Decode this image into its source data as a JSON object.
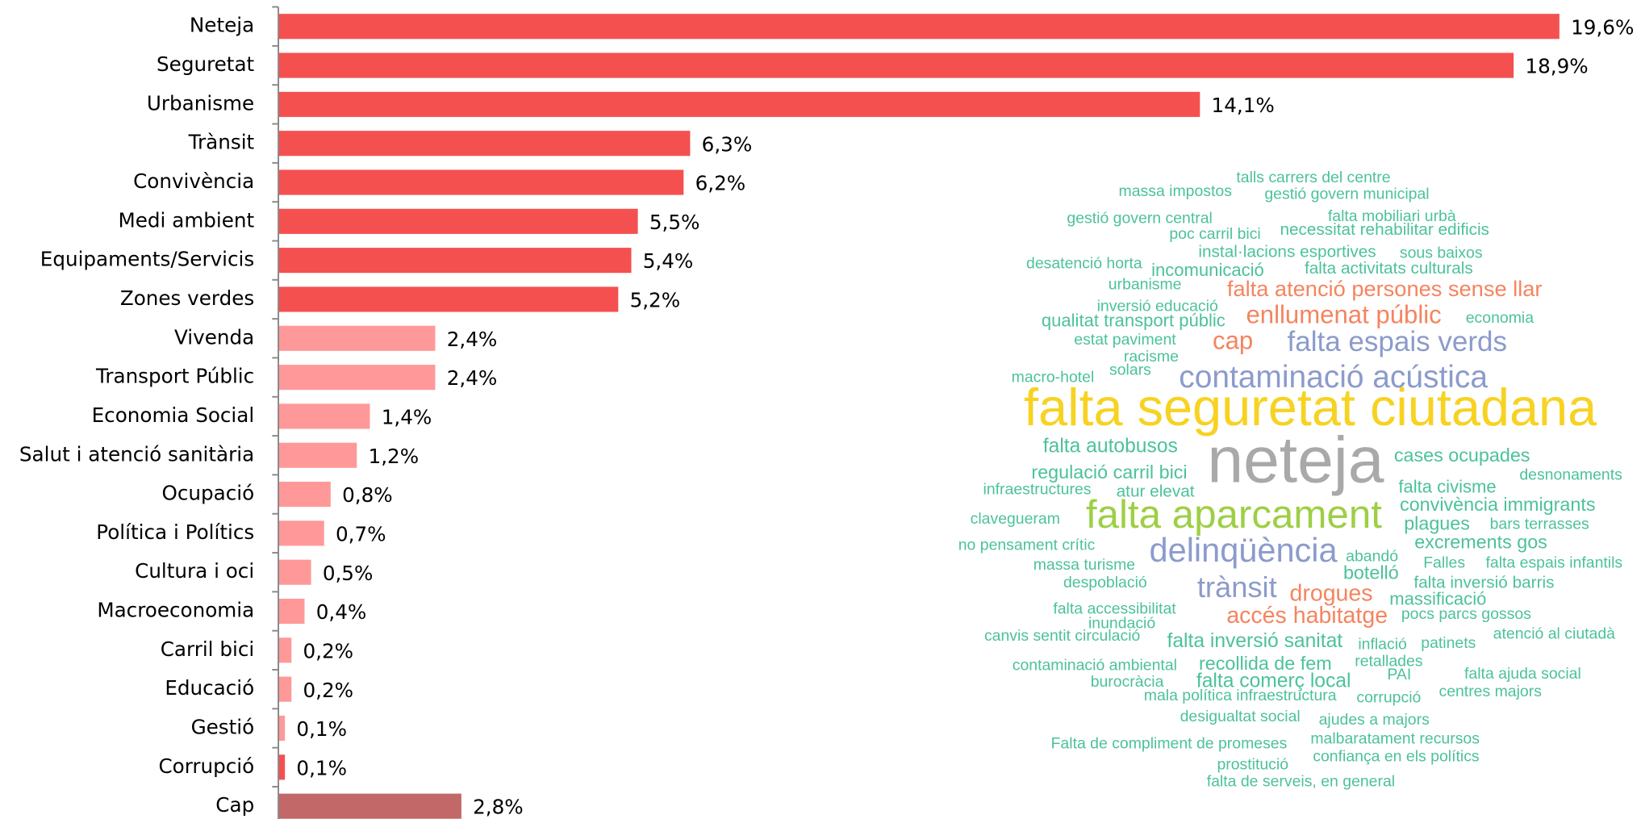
{
  "chart_data": {
    "type": "bar",
    "orientation": "horizontal",
    "categories": [
      "Neteja",
      "Seguretat",
      "Urbanisme",
      "Trànsit",
      "Convivència",
      "Medi ambient",
      "Equipaments/Servicis",
      "Zones verdes",
      "Vivenda",
      "Transport Públic",
      "Economia Social",
      "Salut i atenció sanitària",
      "Ocupació",
      "Política i Polítics",
      "Cultura i oci",
      "Macroeconomia",
      "Carril bici",
      "Educació",
      "Gestió",
      "Corrupció",
      "Cap"
    ],
    "values": [
      19.6,
      18.9,
      14.1,
      6.3,
      6.2,
      5.5,
      5.4,
      5.2,
      2.4,
      2.4,
      1.4,
      1.2,
      0.8,
      0.7,
      0.5,
      0.4,
      0.2,
      0.2,
      0.1,
      0.1,
      2.8
    ],
    "value_labels": [
      "19,6%",
      "18,9%",
      "14,1%",
      "6,3%",
      "6,2%",
      "5,5%",
      "5,4%",
      "5,2%",
      "2,4%",
      "2,4%",
      "1,4%",
      "1,2%",
      "0,8%",
      "0,7%",
      "0,5%",
      "0,4%",
      "0,2%",
      "0,2%",
      "0,1%",
      "0,1%",
      "2,8%"
    ],
    "colors": [
      "#f55050",
      "#f55050",
      "#f55050",
      "#f55050",
      "#f55050",
      "#f55050",
      "#f55050",
      "#f55050",
      "#ff9999",
      "#ff9999",
      "#ff9999",
      "#ff9999",
      "#ff9999",
      "#ff9999",
      "#ff9999",
      "#ff9999",
      "#ff9999",
      "#ff9999",
      "#ff9999",
      "#f55050",
      "#c26868"
    ],
    "xlim": [
      0,
      20
    ]
  },
  "word_cloud": [
    {
      "text": "talls carrers del centre",
      "color": "#4cc29a"
    },
    {
      "text": "massa impostos",
      "color": "#4cc29a"
    },
    {
      "text": "gestió govern municipal",
      "color": "#4cc29a"
    },
    {
      "text": "falta mobiliari urbà",
      "color": "#4cc29a"
    },
    {
      "text": "gestió govern central",
      "color": "#4cc29a"
    },
    {
      "text": "poc carril bici",
      "color": "#4cc29a"
    },
    {
      "text": "necessitat rehabilitar edificis",
      "color": "#4cc29a"
    },
    {
      "text": "instal·lacions esportives",
      "color": "#4cc29a"
    },
    {
      "text": "sous baixos",
      "color": "#4cc29a"
    },
    {
      "text": "desatenció horta",
      "color": "#4cc29a"
    },
    {
      "text": "incomunicació",
      "color": "#4cc29a"
    },
    {
      "text": "falta activitats culturals",
      "color": "#4cc29a"
    },
    {
      "text": "urbanisme",
      "color": "#4cc29a"
    },
    {
      "text": "falta atenció persones sense llar",
      "color": "#f5845f"
    },
    {
      "text": "inversió educació",
      "color": "#4cc29a"
    },
    {
      "text": "enllumenat públic",
      "color": "#f5845f"
    },
    {
      "text": "qualitat transport públic",
      "color": "#4cc29a"
    },
    {
      "text": "economia",
      "color": "#4cc29a"
    },
    {
      "text": "estat paviment",
      "color": "#4cc29a"
    },
    {
      "text": "cap",
      "color": "#f5845f"
    },
    {
      "text": "falta espais verds",
      "color": "#8c9bcc"
    },
    {
      "text": "racisme",
      "color": "#4cc29a"
    },
    {
      "text": "solars",
      "color": "#4cc29a"
    },
    {
      "text": "macro-hotel",
      "color": "#4cc29a"
    },
    {
      "text": "contaminació acústica",
      "color": "#8c9bcc"
    },
    {
      "text": "falta seguretat ciutadana",
      "color": "#f7d221"
    },
    {
      "text": "falta autobusos",
      "color": "#4cc29a"
    },
    {
      "text": "neteja",
      "color": "#a9a9a9"
    },
    {
      "text": "cases ocupades",
      "color": "#4cc29a"
    },
    {
      "text": "regulació carril bici",
      "color": "#4cc29a"
    },
    {
      "text": "desnonaments",
      "color": "#4cc29a"
    },
    {
      "text": "infraestructures",
      "color": "#4cc29a"
    },
    {
      "text": "atur elevat",
      "color": "#4cc29a"
    },
    {
      "text": "falta civisme",
      "color": "#4cc29a"
    },
    {
      "text": "convivència immigrants",
      "color": "#4cc29a"
    },
    {
      "text": "falta aparcament",
      "color": "#9dcf45"
    },
    {
      "text": "clavegueram",
      "color": "#4cc29a"
    },
    {
      "text": "plagues",
      "color": "#4cc29a"
    },
    {
      "text": "bars terrasses",
      "color": "#4cc29a"
    },
    {
      "text": "no pensament crític",
      "color": "#4cc29a"
    },
    {
      "text": "excrements gos",
      "color": "#4cc29a"
    },
    {
      "text": "delinqüència",
      "color": "#8c9bcc"
    },
    {
      "text": "abandó",
      "color": "#4cc29a"
    },
    {
      "text": "Falles",
      "color": "#4cc29a"
    },
    {
      "text": "falta espais infantils",
      "color": "#4cc29a"
    },
    {
      "text": "massa turisme",
      "color": "#4cc29a"
    },
    {
      "text": "botelló",
      "color": "#4cc29a"
    },
    {
      "text": "trànsit",
      "color": "#8c9bcc"
    },
    {
      "text": "drogues",
      "color": "#f5845f"
    },
    {
      "text": "falta inversió barris",
      "color": "#4cc29a"
    },
    {
      "text": "despoblació",
      "color": "#4cc29a"
    },
    {
      "text": "massificació",
      "color": "#4cc29a"
    },
    {
      "text": "falta accessibilitat",
      "color": "#4cc29a"
    },
    {
      "text": "accés habitatge",
      "color": "#f5845f"
    },
    {
      "text": "pocs parcs gossos",
      "color": "#4cc29a"
    },
    {
      "text": "inundació",
      "color": "#4cc29a"
    },
    {
      "text": "canvis sentit circulació",
      "color": "#4cc29a"
    },
    {
      "text": "falta inversió sanitat",
      "color": "#4cc29a"
    },
    {
      "text": "inflació",
      "color": "#4cc29a"
    },
    {
      "text": "patinets",
      "color": "#4cc29a"
    },
    {
      "text": "atenció al ciutadà",
      "color": "#4cc29a"
    },
    {
      "text": "contaminació ambiental",
      "color": "#4cc29a"
    },
    {
      "text": "recollida de fem",
      "color": "#4cc29a"
    },
    {
      "text": "retallades",
      "color": "#4cc29a"
    },
    {
      "text": "PAI",
      "color": "#4cc29a"
    },
    {
      "text": "falta ajuda social",
      "color": "#4cc29a"
    },
    {
      "text": "burocràcia",
      "color": "#4cc29a"
    },
    {
      "text": "falta comerç local",
      "color": "#4cc29a"
    },
    {
      "text": "centres majors",
      "color": "#4cc29a"
    },
    {
      "text": "mala política infraestructura",
      "color": "#4cc29a"
    },
    {
      "text": "corrupció",
      "color": "#4cc29a"
    },
    {
      "text": "desigualtat social",
      "color": "#4cc29a"
    },
    {
      "text": "ajudes a majors",
      "color": "#4cc29a"
    },
    {
      "text": "Falta de compliment de promeses",
      "color": "#4cc29a"
    },
    {
      "text": "malbaratament recursos",
      "color": "#4cc29a"
    },
    {
      "text": "confiança en els polítics",
      "color": "#4cc29a"
    },
    {
      "text": "prostitució",
      "color": "#4cc29a"
    },
    {
      "text": "falta de serveis, en general",
      "color": "#4cc29a"
    }
  ]
}
